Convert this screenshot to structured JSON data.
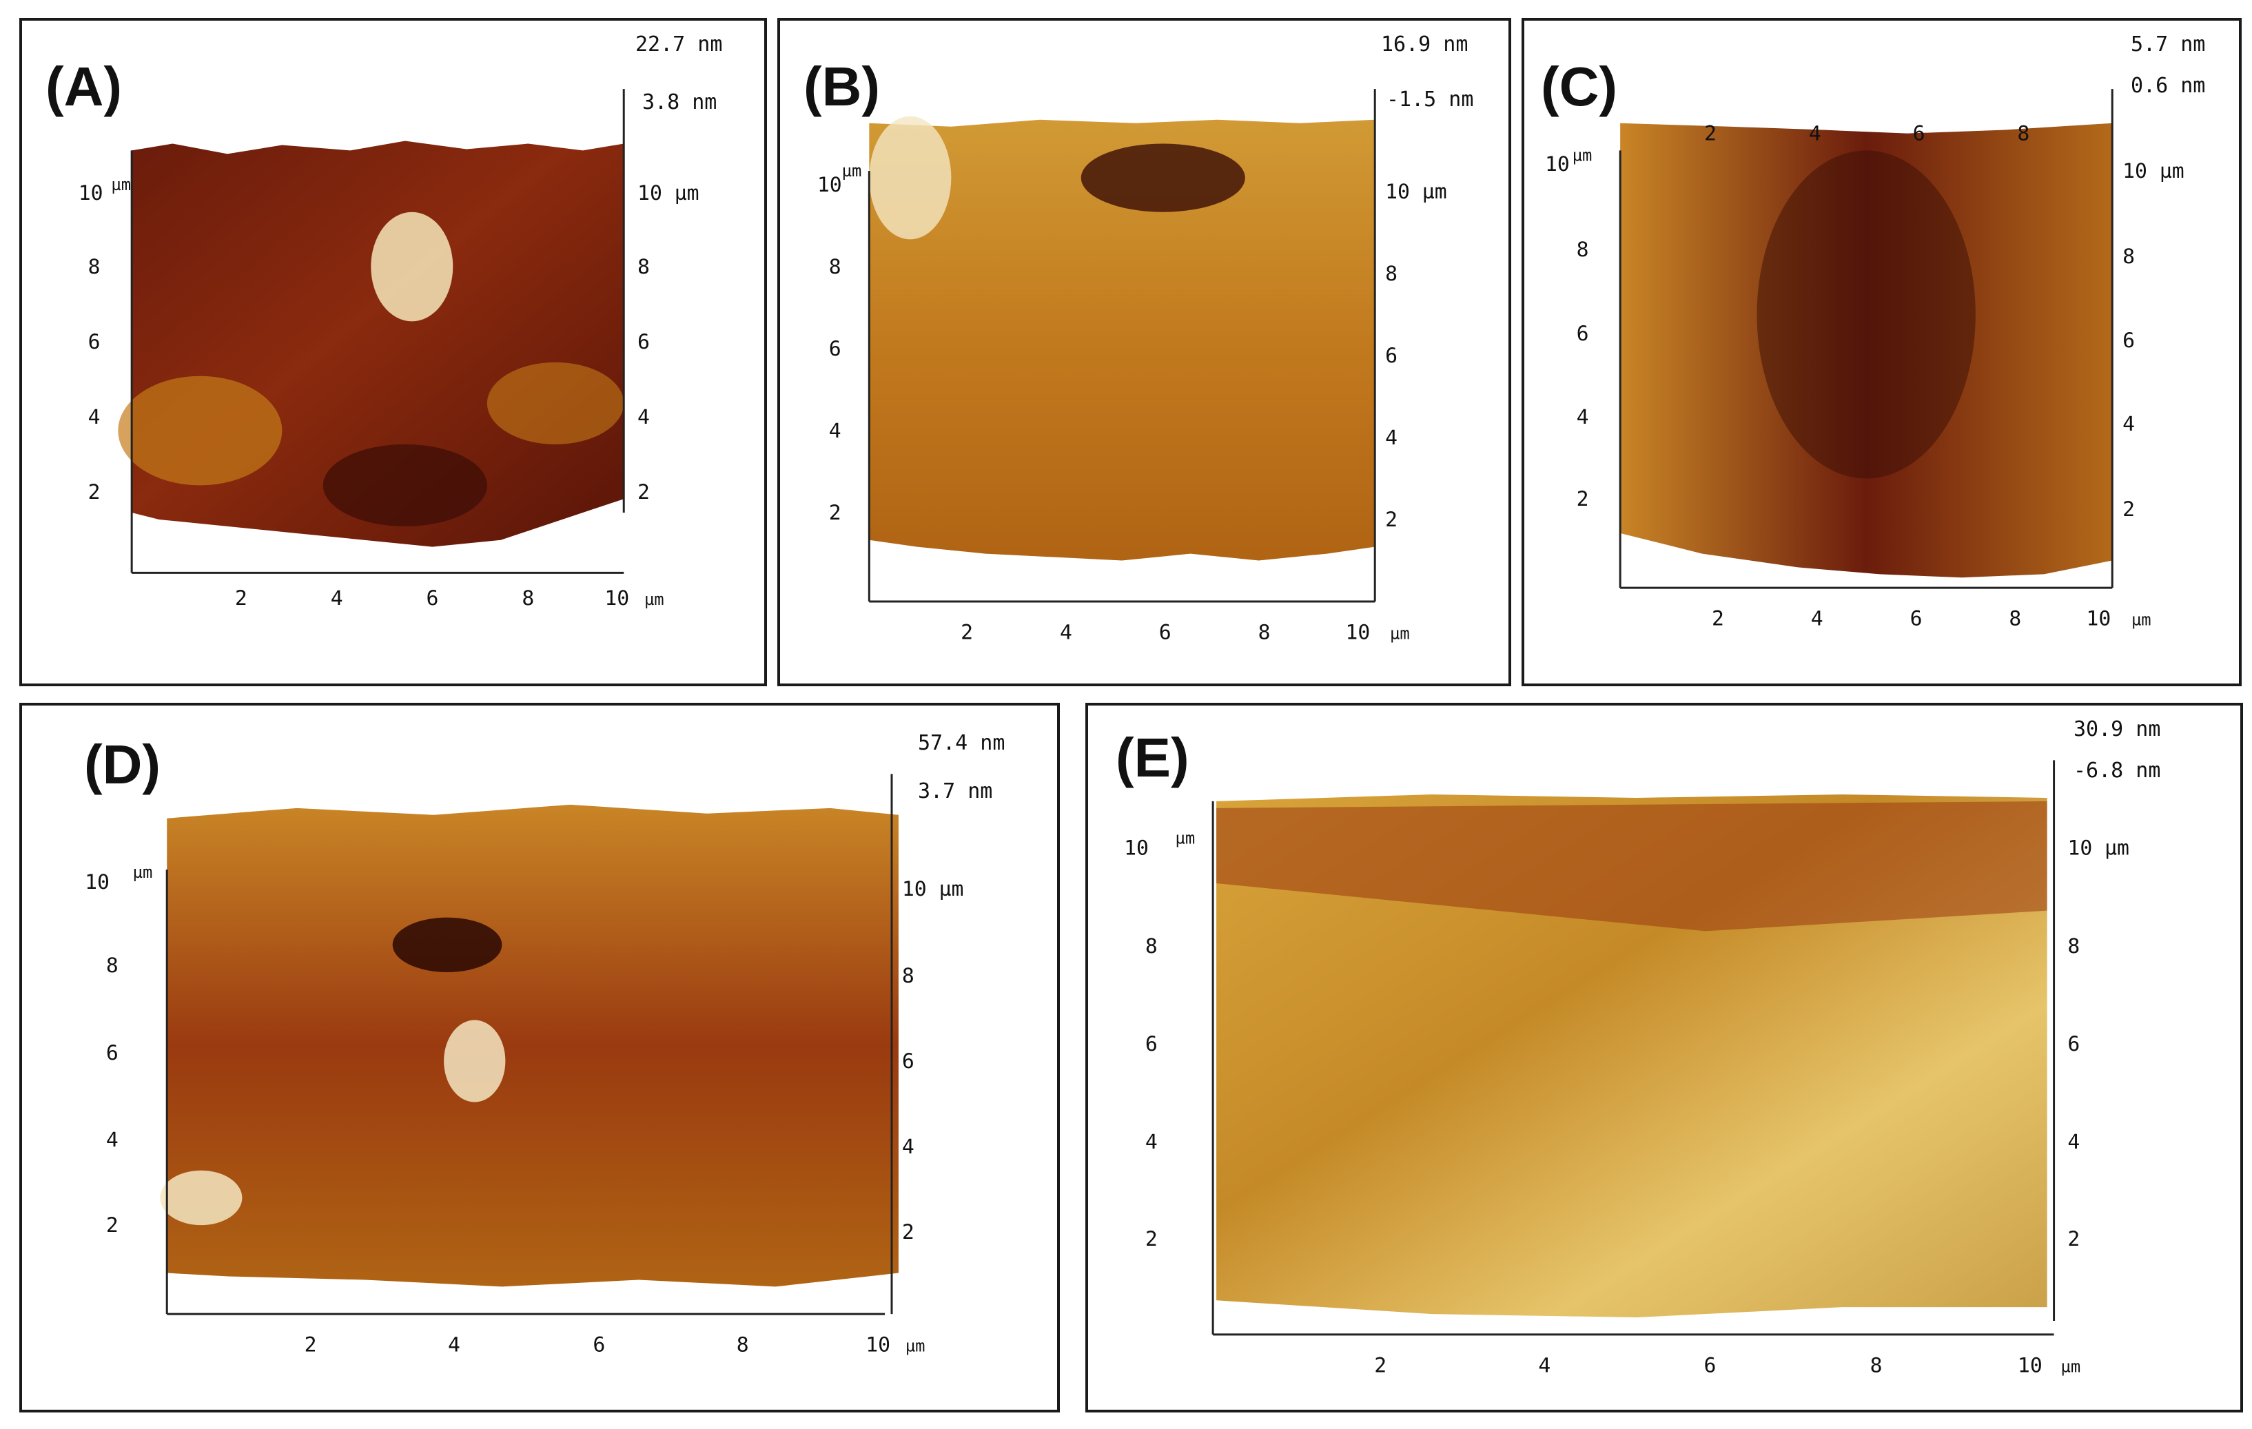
{
  "panels": [
    {
      "label": "(A)",
      "z_max": "22.7 nm",
      "z_min": "3.8 nm"
    },
    {
      "label": "(B)",
      "z_max": "16.9 nm",
      "z_min": "-1.5 nm"
    },
    {
      "label": "(C)",
      "z_max": "5.7 nm",
      "z_min": "0.6 nm"
    },
    {
      "label": "(D)",
      "z_max": "57.4 nm",
      "z_min": "3.7 nm"
    },
    {
      "label": "(E)",
      "z_max": "30.9 nm",
      "z_min": "-6.8 nm"
    }
  ],
  "axis": {
    "ticks": [
      "2",
      "4",
      "6",
      "8"
    ],
    "end": "10",
    "unit": "µm",
    "right_top": "10  µm"
  },
  "palette": {
    "dark": "#3a0d06",
    "mid": "#8a2a0e",
    "orange": "#c06a12",
    "gold": "#d9a330",
    "light": "#f4e6c2"
  }
}
